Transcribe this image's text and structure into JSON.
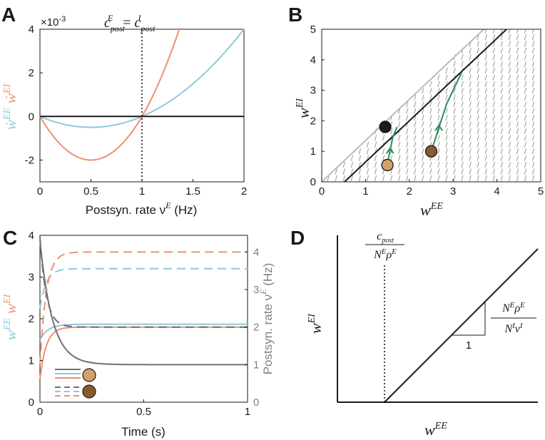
{
  "panels": {
    "A": "A",
    "B": "B",
    "C": "C",
    "D": "D"
  },
  "colors": {
    "ee": "#8ec8dd",
    "ei": "#ef8f73",
    "rate": "#707070",
    "black": "#1a1a1a",
    "green": "#2e8b57",
    "gray_line": "#bbbbbb",
    "gray_arrow": "#a0a0a0",
    "dot_black": "#1c1c1c",
    "dot_tan": "#d3a06c",
    "dot_brown": "#8a5a2e"
  },
  "chart_data": [
    {
      "id": "A",
      "type": "line",
      "xlabel": "Postsyn. rate ν",
      "xlabel_sup": "E",
      "xlabel_unit": " (Hz)",
      "ylabel_ee": "ẇ",
      "ylabel_ee_sup": "EE",
      "ylabel_ei": "ẇ",
      "ylabel_ei_sup": "EI",
      "y_scale_label": "×10",
      "y_scale_exp": "-3",
      "annotation": "c_post^E = c_post^I",
      "annotation_lhs": "c",
      "annotation_sub": "post",
      "annotation_sup_lhs": "E",
      "annotation_eq": "=",
      "annotation_sup_rhs": "I",
      "annotation_x": 1,
      "xlim": [
        0,
        2
      ],
      "ylim": [
        -3,
        4
      ],
      "xticks": [
        0,
        0.5,
        1,
        1.5,
        2
      ],
      "xtick_labels": [
        "0",
        "0.5",
        "1",
        "1.5",
        "2"
      ],
      "yticks": [
        -2,
        0,
        2,
        4
      ],
      "ytick_labels": [
        "-2",
        "0",
        "2",
        "4"
      ],
      "series": [
        {
          "name": "EE",
          "formula": "2*x*(x-1)",
          "x_range": [
            0,
            2
          ]
        },
        {
          "name": "EI",
          "formula": "8*x*(x-1)",
          "x_range": [
            0,
            1.37
          ]
        },
        {
          "name": "zero",
          "formula": "0",
          "x_range": [
            0,
            2
          ]
        }
      ]
    },
    {
      "id": "B",
      "type": "phase-plane",
      "xlabel": "w",
      "xlabel_sup": "EE",
      "ylabel": "w",
      "ylabel_sup": "EI",
      "xlim": [
        0,
        5
      ],
      "ylim": [
        0,
        5
      ],
      "xticks": [
        0,
        1,
        2,
        3,
        4,
        5
      ],
      "xtick_labels": [
        "0",
        "1",
        "2",
        "3",
        "4",
        "5"
      ],
      "yticks": [
        0,
        1,
        2,
        3,
        4,
        5
      ],
      "ytick_labels": [
        "0",
        "1",
        "2",
        "3",
        "4",
        "5"
      ],
      "lines": [
        {
          "name": "upper-boundary",
          "x": [
            0,
            3.7
          ],
          "y": [
            0,
            5
          ]
        },
        {
          "name": "fixed-point-line",
          "x": [
            0.52,
            4.22
          ],
          "y": [
            0,
            5
          ]
        }
      ],
      "trajectories": [
        {
          "name": "traj-1",
          "x": [
            1.5,
            1.62,
            1.72
          ],
          "y": [
            0.6,
            1.45,
            1.8
          ]
        },
        {
          "name": "traj-2",
          "x": [
            2.5,
            2.85,
            3.2
          ],
          "y": [
            1.0,
            2.55,
            3.6
          ]
        }
      ],
      "dots": [
        {
          "name": "black-dot",
          "x": 1.45,
          "y": 1.8,
          "color": "#1c1c1c"
        },
        {
          "name": "tan-dot",
          "x": 1.5,
          "y": 0.55,
          "color": "#d3a06c"
        },
        {
          "name": "brown-dot",
          "x": 2.5,
          "y": 1.0,
          "color": "#8a5a2e"
        }
      ]
    },
    {
      "id": "C",
      "type": "line",
      "xlabel": "Time (s)",
      "ylabel_ee": "w",
      "ylabel_ee_sup": "EE",
      "ylabel_ei": "w",
      "ylabel_ei_sup": "EI",
      "ylabel_right": "Postsyn. rate ν",
      "ylabel_right_sup": "E",
      "ylabel_right_unit": " (Hz)",
      "xlim": [
        0,
        1
      ],
      "ylim": [
        0,
        4
      ],
      "ylim_right": [
        0,
        4.444
      ],
      "xticks": [
        0,
        0.5,
        1
      ],
      "xtick_labels": [
        "0",
        "0.5",
        "1"
      ],
      "yticks": [
        0,
        1,
        2,
        3,
        4
      ],
      "ytick_labels": [
        "0",
        "1",
        "2",
        "3",
        "4"
      ],
      "yticks_right": [
        0,
        1,
        2,
        3,
        4
      ],
      "ytick_labels_right": [
        "0",
        "1",
        "2",
        "3",
        "4"
      ],
      "series": [
        {
          "name": "EE-tan",
          "style": "solid",
          "start": 1.5,
          "end": 1.87,
          "tau": 0.04
        },
        {
          "name": "EI-tan",
          "style": "solid",
          "start": 0.55,
          "end": 1.8,
          "tau": 0.03
        },
        {
          "name": "rate-tan",
          "style": "solid",
          "axis": "right",
          "start": 4.3,
          "end": 1.0,
          "tau": 0.06
        },
        {
          "name": "EE-brown",
          "style": "dashed",
          "start": 2.5,
          "end": 3.2,
          "tau": 0.03,
          "dip": true
        },
        {
          "name": "EI-brown",
          "style": "dashed",
          "start": 1.0,
          "end": 3.6,
          "tau": 0.03,
          "dip": true
        },
        {
          "name": "rate-brown",
          "style": "dashed",
          "axis": "right",
          "start": 4.4,
          "end": 2.0,
          "tau": 0.03
        }
      ]
    },
    {
      "id": "D",
      "type": "schematic",
      "xlabel": "w",
      "xlabel_sup": "EE",
      "ylabel": "w",
      "ylabel_sup": "EI",
      "vline_label_num": "c",
      "vline_label_num_sub": "post",
      "vline_label_den": "NEρE",
      "slope_num": "NEρE",
      "slope_den": "NIνI",
      "slope_run": "1"
    }
  ]
}
